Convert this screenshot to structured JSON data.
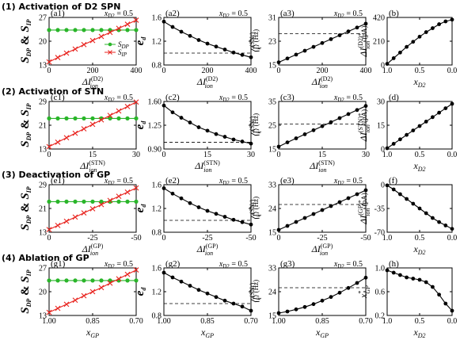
{
  "row_titles": [
    "(1) Activation of D2 SPN",
    "(2) Activation of STN",
    "(3) Deactivation of GP",
    "(4) Ablation of GP"
  ],
  "colors": {
    "green": "#2ab52a",
    "red": "#e8241f",
    "black": "#000000"
  },
  "chart_data": [
    {
      "id": "a1",
      "tag": "(a1)",
      "annotation": "x_D2 = 0.5",
      "type": "line",
      "xlim": [
        0,
        400
      ],
      "xticks": [
        0,
        200,
        400
      ],
      "xticklabels": [
        "0",
        "200",
        "400"
      ],
      "ylim": [
        13,
        27
      ],
      "yticks": [
        13,
        20,
        27
      ],
      "yticklabels": [
        "13",
        "20",
        "27"
      ],
      "xlabel": "ΔI_ion^(D2)",
      "ylabel": "S_DP & S_IP",
      "legend": [
        "S_DP",
        "S_IP"
      ],
      "series": [
        {
          "name": "S_DP",
          "style": "green",
          "x": [
            0,
            40,
            80,
            120,
            160,
            200,
            240,
            280,
            320,
            360,
            400
          ],
          "y": [
            23.3,
            23.3,
            23.3,
            23.3,
            23.3,
            23.3,
            23.3,
            23.3,
            23.3,
            23.3,
            23.3
          ]
        },
        {
          "name": "S_IP",
          "style": "red",
          "x": [
            0,
            40,
            80,
            120,
            160,
            200,
            240,
            280,
            320,
            360,
            400
          ],
          "y": [
            13.9,
            15.2,
            16.5,
            17.7,
            19.0,
            20.2,
            21.4,
            22.6,
            23.8,
            25.0,
            26.2
          ]
        }
      ]
    },
    {
      "id": "a2",
      "tag": "(a2)",
      "annotation": "x_D2 = 0.5",
      "type": "line",
      "xlim": [
        0,
        400
      ],
      "xticks": [
        0,
        200,
        400
      ],
      "xticklabels": [
        "0",
        "200",
        "400"
      ],
      "ylim": [
        0.8,
        1.6
      ],
      "yticks": [
        0.8,
        1.2,
        1.6
      ],
      "yticklabels": [
        "0.8",
        "1.2",
        "1.6"
      ],
      "xlabel": "ΔI_ion^(D2)",
      "ylabel": "e_d",
      "hline": 1.0,
      "series": [
        {
          "style": "black",
          "x": [
            0,
            40,
            80,
            120,
            160,
            200,
            240,
            280,
            320,
            360,
            400
          ],
          "y": [
            1.53,
            1.44,
            1.36,
            1.29,
            1.22,
            1.16,
            1.11,
            1.06,
            1.01,
            0.97,
            0.93
          ]
        }
      ]
    },
    {
      "id": "a3",
      "tag": "(a3)",
      "annotation": "x_D2 = 0.5",
      "type": "line",
      "xlim": [
        0,
        400
      ],
      "xticks": [
        0,
        200,
        400
      ],
      "xticklabels": [
        "0",
        "200",
        "400"
      ],
      "ylim": [
        15,
        31
      ],
      "yticks": [
        15,
        23,
        31
      ],
      "yticklabels": [
        "15",
        "23",
        "31"
      ],
      "xlabel": "ΔI_ion^(D2)",
      "ylabel": "⟨f_i^(SNr)⟩ (Hz)",
      "hline": 25.5,
      "series": [
        {
          "style": "black",
          "x": [
            0,
            40,
            80,
            120,
            160,
            200,
            240,
            280,
            320,
            360,
            400
          ],
          "y": [
            15.9,
            17.2,
            18.5,
            19.8,
            21.1,
            22.4,
            23.7,
            25.0,
            26.3,
            27.6,
            28.9
          ]
        }
      ]
    },
    {
      "id": "b",
      "tag": "(b)",
      "type": "line",
      "xlim": [
        1.0,
        0.0
      ],
      "xticks": [
        1.0,
        0.5,
        0.0
      ],
      "xticklabels": [
        "1.0",
        "0.5",
        "0.0"
      ],
      "ylim": [
        0,
        420
      ],
      "yticks": [
        0,
        210,
        420
      ],
      "yticklabels": [
        "0",
        "210",
        "420"
      ],
      "xlabel": "x_D2",
      "ylabel": "ΔI_ion^(D2)* (pA)",
      "series": [
        {
          "style": "black",
          "x": [
            1.0,
            0.9,
            0.8,
            0.7,
            0.6,
            0.5,
            0.4,
            0.3,
            0.2,
            0.1,
            0.0
          ],
          "y": [
            10,
            60,
            110,
            160,
            205,
            250,
            290,
            325,
            360,
            385,
            400
          ]
        }
      ]
    },
    {
      "id": "c1",
      "tag": "(c1)",
      "annotation": "x_D2 = 0.5",
      "type": "line",
      "xlim": [
        0,
        30
      ],
      "xticks": [
        0,
        15,
        30
      ],
      "xticklabels": [
        "0",
        "15",
        "30"
      ],
      "ylim": [
        13,
        29
      ],
      "yticks": [
        13,
        21,
        29
      ],
      "yticklabels": [
        "13",
        "21",
        "29"
      ],
      "xlabel": "ΔI_ion^(STN)",
      "ylabel": "S_DP & S_IP",
      "series": [
        {
          "name": "S_DP",
          "style": "green",
          "x": [
            0,
            3,
            6,
            9,
            12,
            15,
            18,
            21,
            24,
            27,
            30
          ],
          "y": [
            23.3,
            23.3,
            23.3,
            23.3,
            23.3,
            23.3,
            23.3,
            23.3,
            23.3,
            23.3,
            23.3
          ]
        },
        {
          "name": "S_IP",
          "style": "red",
          "x": [
            0,
            3,
            6,
            9,
            12,
            15,
            18,
            21,
            24,
            27,
            30
          ],
          "y": [
            13.8,
            15.3,
            16.8,
            18.3,
            19.8,
            21.3,
            22.8,
            24.3,
            25.8,
            27.3,
            28.8
          ]
        }
      ]
    },
    {
      "id": "c2",
      "tag": "(c2)",
      "annotation": "x_D2 = 0.5",
      "type": "line",
      "xlim": [
        0,
        30
      ],
      "xticks": [
        0,
        15,
        30
      ],
      "xticklabels": [
        "0",
        "15",
        "30"
      ],
      "ylim": [
        0.9,
        1.6
      ],
      "yticks": [
        0.9,
        1.25,
        1.6
      ],
      "yticklabels": [
        "0.90",
        "1.25",
        "1.60"
      ],
      "xlabel": "ΔI_ion^(STN)",
      "ylabel": "e_d",
      "hline": 1.0,
      "series": [
        {
          "style": "black",
          "x": [
            0,
            3,
            6,
            9,
            12,
            15,
            18,
            21,
            24,
            27,
            30
          ],
          "y": [
            1.54,
            1.44,
            1.36,
            1.29,
            1.22,
            1.17,
            1.12,
            1.08,
            1.04,
            1.01,
            0.98
          ]
        }
      ]
    },
    {
      "id": "c3",
      "tag": "(c3)",
      "annotation": "x_D2 = 0.5",
      "type": "line",
      "xlim": [
        0,
        30
      ],
      "xticks": [
        0,
        15,
        30
      ],
      "xticklabels": [
        "0",
        "15",
        "30"
      ],
      "ylim": [
        15,
        35
      ],
      "yticks": [
        15,
        25,
        35
      ],
      "yticklabels": [
        "15",
        "25",
        "35"
      ],
      "xlabel": "ΔI_ion^(STN)",
      "ylabel": "⟨f_i^(SNr)⟩ (Hz)",
      "hline": 25.5,
      "series": [
        {
          "style": "black",
          "x": [
            0,
            3,
            6,
            9,
            12,
            15,
            18,
            21,
            24,
            27,
            30
          ],
          "y": [
            16.0,
            17.8,
            19.5,
            21.2,
            22.9,
            24.6,
            26.3,
            28.0,
            29.7,
            31.4,
            33.1
          ]
        }
      ]
    },
    {
      "id": "d",
      "tag": "(d)",
      "type": "line",
      "xlim": [
        1.0,
        0.0
      ],
      "xticks": [
        1.0,
        0.5,
        0.0
      ],
      "xticklabels": [
        "1.0",
        "0.5",
        "0.0"
      ],
      "ylim": [
        0,
        30
      ],
      "yticks": [
        0,
        15,
        30
      ],
      "yticklabels": [
        "0",
        "15",
        "30"
      ],
      "xlabel": "x_D2",
      "ylabel": "ΔI_ion^(STN)* (pA)",
      "series": [
        {
          "style": "black",
          "x": [
            1.0,
            0.9,
            0.8,
            0.7,
            0.6,
            0.5,
            0.4,
            0.3,
            0.2,
            0.1,
            0.0
          ],
          "y": [
            0.5,
            3.3,
            6.1,
            8.9,
            11.7,
            14.5,
            17.3,
            20.1,
            22.9,
            25.7,
            28.5
          ]
        }
      ]
    },
    {
      "id": "e1",
      "tag": "(e1)",
      "annotation": "x_D2 = 0.5",
      "type": "line",
      "xlim": [
        0,
        -50
      ],
      "xticks": [
        0,
        -25,
        -50
      ],
      "xticklabels": [
        "0",
        "-25",
        "-50"
      ],
      "ylim": [
        13,
        29
      ],
      "yticks": [
        13,
        21,
        29
      ],
      "yticklabels": [
        "13",
        "21",
        "29"
      ],
      "xlabel": "ΔI_ion^(GP)",
      "ylabel": "S_DP & S_IP",
      "series": [
        {
          "name": "S_DP",
          "style": "green",
          "x": [
            0,
            -5,
            -10,
            -15,
            -20,
            -25,
            -30,
            -35,
            -40,
            -45,
            -50
          ],
          "y": [
            23.3,
            23.3,
            23.3,
            23.3,
            23.3,
            23.3,
            23.3,
            23.3,
            23.3,
            23.3,
            23.3
          ]
        },
        {
          "name": "S_IP",
          "style": "red",
          "x": [
            0,
            -5,
            -10,
            -15,
            -20,
            -25,
            -30,
            -35,
            -40,
            -45,
            -50
          ],
          "y": [
            13.9,
            15.3,
            16.7,
            18.1,
            19.5,
            20.9,
            22.3,
            23.7,
            25.1,
            26.5,
            27.9
          ]
        }
      ]
    },
    {
      "id": "e2",
      "tag": "(e2)",
      "annotation": "x_D2 = 0.5",
      "type": "line",
      "xlim": [
        0,
        -50
      ],
      "xticks": [
        0,
        -25,
        -50
      ],
      "xticklabels": [
        "0",
        "-25",
        "-50"
      ],
      "ylim": [
        0.8,
        1.6
      ],
      "yticks": [
        0.8,
        1.2,
        1.6
      ],
      "yticklabels": [
        "0.8",
        "1.2",
        "1.6"
      ],
      "xlabel": "ΔI_ion^(GP)",
      "ylabel": "e_d",
      "hline": 1.0,
      "series": [
        {
          "style": "black",
          "x": [
            0,
            -5,
            -10,
            -15,
            -20,
            -25,
            -30,
            -35,
            -40,
            -45,
            -50
          ],
          "y": [
            1.54,
            1.45,
            1.37,
            1.29,
            1.22,
            1.16,
            1.11,
            1.06,
            1.01,
            0.97,
            0.93
          ]
        }
      ]
    },
    {
      "id": "e3",
      "tag": "(e3)",
      "annotation": "x_D2 = 0.5",
      "type": "line",
      "xlim": [
        0,
        -50
      ],
      "xticks": [
        0,
        -25,
        -50
      ],
      "xticklabels": [
        "0",
        "-25",
        "-50"
      ],
      "ylim": [
        15,
        33
      ],
      "yticks": [
        15,
        24,
        33
      ],
      "yticklabels": [
        "15",
        "24",
        "33"
      ],
      "xlabel": "ΔI_ion^(GP)",
      "ylabel": "⟨f_i^(SNr)⟩ (Hz)",
      "hline": 25.5,
      "series": [
        {
          "style": "black",
          "x": [
            0,
            -5,
            -10,
            -15,
            -20,
            -25,
            -30,
            -35,
            -40,
            -45,
            -50
          ],
          "y": [
            15.9,
            17.4,
            18.9,
            20.4,
            21.9,
            23.4,
            24.9,
            26.4,
            27.9,
            29.4,
            30.9
          ]
        }
      ]
    },
    {
      "id": "f",
      "tag": "(f)",
      "type": "line",
      "xlim": [
        1.0,
        0.0
      ],
      "xticks": [
        1.0,
        0.5,
        0.0
      ],
      "xticklabels": [
        "1.0",
        "0.5",
        "0.0"
      ],
      "ylim": [
        -70,
        0
      ],
      "yticks": [
        -70,
        -35,
        0
      ],
      "yticklabels": [
        "-70",
        "-35",
        "0"
      ],
      "xlabel": "x_D2",
      "ylabel": "ΔI_ion^(GP)* (pA)",
      "series": [
        {
          "style": "black",
          "x": [
            1.0,
            0.9,
            0.8,
            0.7,
            0.6,
            0.5,
            0.4,
            0.3,
            0.2,
            0.1,
            0.0
          ],
          "y": [
            -1,
            -7,
            -14,
            -21,
            -28,
            -35,
            -42,
            -49,
            -55,
            -60,
            -65
          ]
        }
      ]
    },
    {
      "id": "g1",
      "tag": "(g1)",
      "annotation": "x_D2 = 0.5",
      "type": "line",
      "xlim": [
        1.0,
        0.7
      ],
      "xticks": [
        1.0,
        0.85,
        0.7
      ],
      "xticklabels": [
        "1.00",
        "0.85",
        "0.70"
      ],
      "ylim": [
        13,
        27
      ],
      "yticks": [
        13,
        20,
        27
      ],
      "yticklabels": [
        "13",
        "20",
        "27"
      ],
      "xlabel": "x_GP",
      "ylabel": "S_DP & S_IP",
      "series": [
        {
          "name": "S_DP",
          "style": "green",
          "x": [
            1.0,
            0.97,
            0.94,
            0.91,
            0.88,
            0.85,
            0.82,
            0.79,
            0.76,
            0.73,
            0.7
          ],
          "y": [
            23.3,
            23.3,
            23.3,
            23.3,
            23.3,
            23.3,
            23.3,
            23.3,
            23.3,
            23.3,
            23.3
          ]
        },
        {
          "name": "S_IP",
          "style": "red",
          "x": [
            1.0,
            0.97,
            0.94,
            0.91,
            0.88,
            0.85,
            0.82,
            0.79,
            0.76,
            0.73,
            0.7
          ],
          "y": [
            13.9,
            15.1,
            16.3,
            17.5,
            18.8,
            20.0,
            21.2,
            22.5,
            23.8,
            25.1,
            26.4
          ]
        }
      ]
    },
    {
      "id": "g2",
      "tag": "(g2)",
      "annotation": "x_D2 = 0.5",
      "type": "line",
      "xlim": [
        1.0,
        0.7
      ],
      "xticks": [
        1.0,
        0.85,
        0.7
      ],
      "xticklabels": [
        "1.00",
        "0.85",
        "0.70"
      ],
      "ylim": [
        0.8,
        1.6
      ],
      "yticks": [
        0.8,
        1.2,
        1.6
      ],
      "yticklabels": [
        "0.8",
        "1.2",
        "1.6"
      ],
      "xlabel": "x_GP",
      "ylabel": "e_d",
      "hline": 1.0,
      "series": [
        {
          "style": "black",
          "x": [
            1.0,
            0.97,
            0.94,
            0.91,
            0.88,
            0.85,
            0.82,
            0.79,
            0.76,
            0.73,
            0.7
          ],
          "y": [
            1.52,
            1.44,
            1.37,
            1.3,
            1.23,
            1.17,
            1.11,
            1.05,
            1.0,
            0.95,
            0.88
          ]
        }
      ]
    },
    {
      "id": "g3",
      "tag": "(g3)",
      "annotation": "x_D2 = 0.5",
      "type": "line",
      "xlim": [
        1.0,
        0.7
      ],
      "xticks": [
        1.0,
        0.85,
        0.7
      ],
      "xticklabels": [
        "1.00",
        "0.85",
        "0.70"
      ],
      "ylim": [
        15,
        33
      ],
      "yticks": [
        15,
        24,
        33
      ],
      "yticklabels": [
        "15",
        "24",
        "33"
      ],
      "xlabel": "x_GP",
      "ylabel": "⟨f_i^(SNr)⟩ (Hz)",
      "hline": 25.5,
      "series": [
        {
          "style": "black",
          "x": [
            1.0,
            0.97,
            0.94,
            0.91,
            0.88,
            0.85,
            0.82,
            0.79,
            0.76,
            0.73,
            0.7
          ],
          "y": [
            15.9,
            16.5,
            17.3,
            18.2,
            19.3,
            20.6,
            22.0,
            23.6,
            25.4,
            27.3,
            29.3
          ]
        }
      ]
    },
    {
      "id": "h",
      "tag": "(h)",
      "type": "line",
      "xlim": [
        1.0,
        0.0
      ],
      "xticks": [
        1.0,
        0.5,
        0.0
      ],
      "xticklabels": [
        "1.0",
        "0.5",
        "0.0"
      ],
      "ylim": [
        0.2,
        1.0
      ],
      "yticks": [
        0.2,
        0.6,
        1.0
      ],
      "yticklabels": [
        "0.2",
        "0.6",
        "1.0"
      ],
      "xlabel": "x_D2",
      "ylabel": "x_GP^*",
      "series": [
        {
          "style": "black",
          "x": [
            1.0,
            0.9,
            0.8,
            0.7,
            0.6,
            0.5,
            0.4,
            0.3,
            0.2,
            0.1,
            0.0
          ],
          "y": [
            0.96,
            0.92,
            0.88,
            0.84,
            0.82,
            0.8,
            0.76,
            0.68,
            0.55,
            0.4,
            0.28
          ]
        }
      ]
    }
  ]
}
